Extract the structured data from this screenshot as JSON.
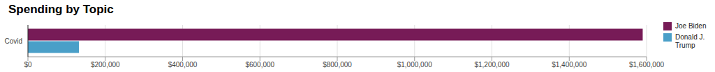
{
  "chart_data": {
    "type": "bar",
    "title": "Spending by Topic",
    "orientation": "horizontal",
    "categories": [
      "Covid"
    ],
    "series": [
      {
        "name": "Joe Biden",
        "color": "#771b57",
        "values": [
          1590000
        ]
      },
      {
        "name": "Donald J. Trump",
        "color": "#4a9fc8",
        "values": [
          132000
        ]
      }
    ],
    "xlim": [
      0,
      1600000
    ],
    "xticks": [
      {
        "value": 0,
        "label": "$0"
      },
      {
        "value": 200000,
        "label": "$200,000"
      },
      {
        "value": 400000,
        "label": "$400,000"
      },
      {
        "value": 600000,
        "label": "$600,000"
      },
      {
        "value": 800000,
        "label": "$800,000"
      },
      {
        "value": 1000000,
        "label": "$1,000,000"
      },
      {
        "value": 1200000,
        "label": "$1,200,000"
      },
      {
        "value": 1400000,
        "label": "$1,400,000"
      },
      {
        "value": 1600000,
        "label": "$1,600,000"
      }
    ],
    "grid": true,
    "legend": "right"
  }
}
